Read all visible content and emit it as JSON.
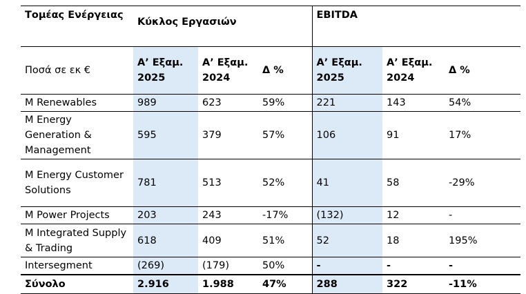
{
  "header": {
    "segment_title": "Τομέας Ενέργειας",
    "group_revenue": "Κύκλος Εργασιών",
    "group_ebitda": "EBITDA",
    "units": "Ποσά σε εκ €",
    "col_h1_2025": "Α’ Εξαμ. 2025",
    "col_h1_2024": "Α’ Εξαμ. 2024",
    "col_delta": "Δ %"
  },
  "rows": [
    {
      "name": "M Renewables",
      "rev_2025": "989",
      "rev_2024": "623",
      "rev_delta": "59%",
      "ebitda_2025": "221",
      "ebitda_2024": "143",
      "ebitda_delta": "54%"
    },
    {
      "name": "M Energy Generation & Management",
      "rev_2025": "595",
      "rev_2024": "379",
      "rev_delta": "57%",
      "ebitda_2025": "106",
      "ebitda_2024": "91",
      "ebitda_delta": "17%"
    },
    {
      "name": "M Energy Customer Solutions",
      "rev_2025": "781",
      "rev_2024": "513",
      "rev_delta": "52%",
      "ebitda_2025": "41",
      "ebitda_2024": "58",
      "ebitda_delta": "-29%"
    },
    {
      "name": "M Power Projects",
      "rev_2025": "203",
      "rev_2024": "243",
      "rev_delta": "-17%",
      "ebitda_2025": "(132)",
      "ebitda_2024": "12",
      "ebitda_delta": "-"
    },
    {
      "name": "M Integrated Supply & Trading",
      "rev_2025": "618",
      "rev_2024": "409",
      "rev_delta": "51%",
      "ebitda_2025": "52",
      "ebitda_2024": "18",
      "ebitda_delta": "195%"
    },
    {
      "name": "Intersegment",
      "rev_2025": "(269)",
      "rev_2024": "(179)",
      "rev_delta": "50%",
      "ebitda_2025": "-",
      "ebitda_2024": "-",
      "ebitda_delta": "-"
    }
  ],
  "total": {
    "name": "Σύνολο",
    "rev_2025": "2.916",
    "rev_2024": "1.988",
    "rev_delta": "47%",
    "ebitda_2025": "288",
    "ebitda_2024": "322",
    "ebitda_delta": "-11%"
  },
  "colors": {
    "highlight": "#dce9f7",
    "rule": "#000000"
  }
}
